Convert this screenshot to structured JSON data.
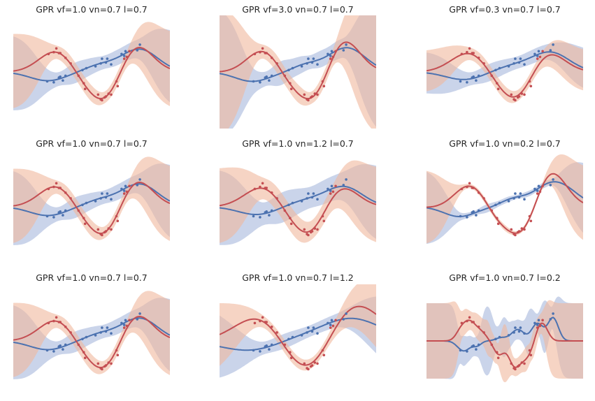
{
  "figure": {
    "colors": {
      "blue_line": "#4c72b0",
      "blue_band": "#a6b8dc",
      "red_line": "#c44e52",
      "red_band": "#f0b89c",
      "overlap": "#c8a8a8"
    }
  },
  "chart_data": [
    {
      "type": "line",
      "title": "GPR vf=1.0 vn=0.7 l=0.7",
      "vf": 1.0,
      "vn": 0.7,
      "l": 0.7,
      "ylim": [
        -3,
        3
      ],
      "xlim": [
        -3,
        3
      ],
      "grid": false
    },
    {
      "type": "line",
      "title": "GPR vf=3.0 vn=0.7 l=0.7",
      "vf": 3.0,
      "vn": 0.7,
      "l": 0.7,
      "ylim": [
        -3,
        3
      ],
      "xlim": [
        -3,
        3
      ],
      "grid": false
    },
    {
      "type": "line",
      "title": "GPR vf=0.3 vn=0.7 l=0.7",
      "vf": 0.3,
      "vn": 0.7,
      "l": 0.7,
      "ylim": [
        -3,
        3
      ],
      "xlim": [
        -3,
        3
      ],
      "grid": false
    },
    {
      "type": "line",
      "title": "GPR vf=1.0 vn=0.7 l=0.7",
      "vf": 1.0,
      "vn": 0.7,
      "l": 0.7,
      "ylim": [
        -3,
        3
      ],
      "xlim": [
        -3,
        3
      ],
      "grid": false
    },
    {
      "type": "line",
      "title": "GPR vf=1.0 vn=1.2 l=0.7",
      "vf": 1.0,
      "vn": 1.2,
      "l": 0.7,
      "ylim": [
        -3,
        3
      ],
      "xlim": [
        -3,
        3
      ],
      "grid": false
    },
    {
      "type": "line",
      "title": "GPR vf=1.0 vn=0.2 l=0.7",
      "vf": 1.0,
      "vn": 0.2,
      "l": 0.7,
      "ylim": [
        -3,
        3
      ],
      "xlim": [
        -3,
        3
      ],
      "grid": false
    },
    {
      "type": "line",
      "title": "GPR vf=1.0 vn=0.7 l=0.7",
      "vf": 1.0,
      "vn": 0.7,
      "l": 0.7,
      "ylim": [
        -3,
        3
      ],
      "xlim": [
        -3,
        3
      ],
      "grid": false
    },
    {
      "type": "line",
      "title": "GPR vf=1.0 vn=0.7 l=1.2",
      "vf": 1.0,
      "vn": 0.7,
      "l": 1.2,
      "ylim": [
        -3,
        3
      ],
      "xlim": [
        -3,
        3
      ],
      "grid": false
    },
    {
      "type": "line",
      "title": "GPR vf=1.0 vn=0.7 l=0.2",
      "vf": 1.0,
      "vn": 0.7,
      "l": 0.2,
      "ylim": [
        -3,
        3
      ],
      "xlim": [
        -3,
        3
      ],
      "grid": false
    }
  ],
  "observations": {
    "blue": {
      "x": [
        -1.7,
        -1.45,
        -1.25,
        -1.2,
        -1.1,
        -1.0,
        -0.35,
        -0.2,
        0.15,
        0.35,
        0.4,
        0.55,
        0.6,
        0.75,
        1.15,
        1.25,
        1.3,
        1.75,
        1.85
      ],
      "y": [
        -0.5,
        -0.55,
        -0.3,
        -0.25,
        -0.45,
        -0.2,
        0.1,
        0.2,
        0.3,
        0.45,
        0.7,
        0.5,
        0.7,
        0.4,
        0.95,
        0.85,
        1.1,
        1.15,
        1.45
      ]
    },
    "red": {
      "x": [
        -1.65,
        -1.45,
        -1.35,
        -1.25,
        -1.2,
        -1.0,
        -0.8,
        -0.5,
        -0.3,
        -0.25,
        0.25,
        0.35,
        0.4,
        0.5,
        0.55,
        0.65,
        0.75,
        0.95,
        1.0,
        1.25,
        1.35,
        1.45
      ],
      "y": [
        0.95,
        1.05,
        1.25,
        1.0,
        1.0,
        0.75,
        0.45,
        -0.2,
        -0.6,
        -0.9,
        -1.2,
        -1.45,
        -1.5,
        -1.35,
        -1.3,
        -1.15,
        -1.2,
        -0.5,
        -0.75,
        0.7,
        0.8,
        1.1
      ]
    }
  }
}
